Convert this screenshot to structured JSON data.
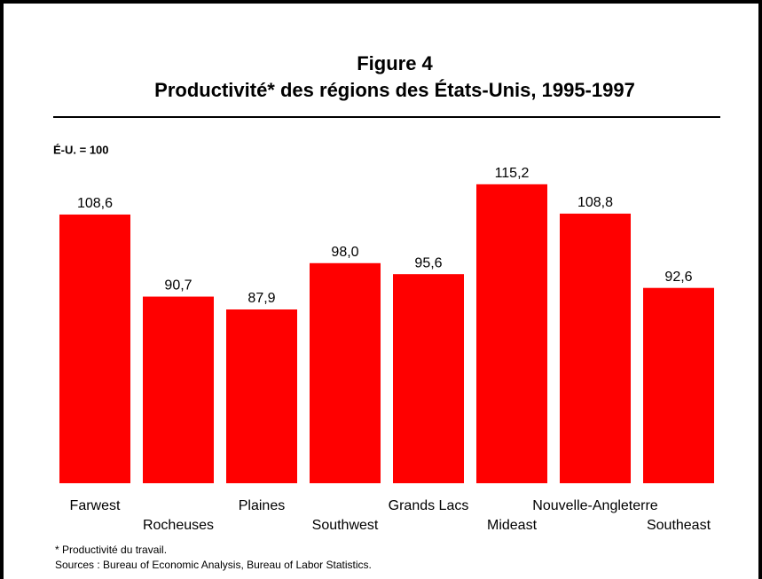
{
  "chart_data": {
    "type": "bar",
    "title": "Figure 4",
    "subtitle": "Productivité* des régions des États-Unis, 1995-1997",
    "y_label": "É-U. = 100",
    "categories": [
      "Farwest",
      "Rocheuses",
      "Plaines",
      "Southwest",
      "Grands Lacs",
      "Mideast",
      "Nouvelle-Angleterre",
      "Southeast"
    ],
    "values": [
      108.6,
      90.7,
      87.9,
      98.0,
      95.6,
      115.2,
      108.8,
      92.6
    ],
    "value_labels": [
      "108,6",
      "90,7",
      "87,9",
      "98,0",
      "95,6",
      "115,2",
      "108,8",
      "92,6"
    ],
    "color": "#ff0000",
    "ylim": [
      50,
      120
    ],
    "footnotes": [
      "* Productivité du travail.",
      "Sources : Bureau of Economic Analysis, Bureau of Labor Statistics."
    ]
  }
}
